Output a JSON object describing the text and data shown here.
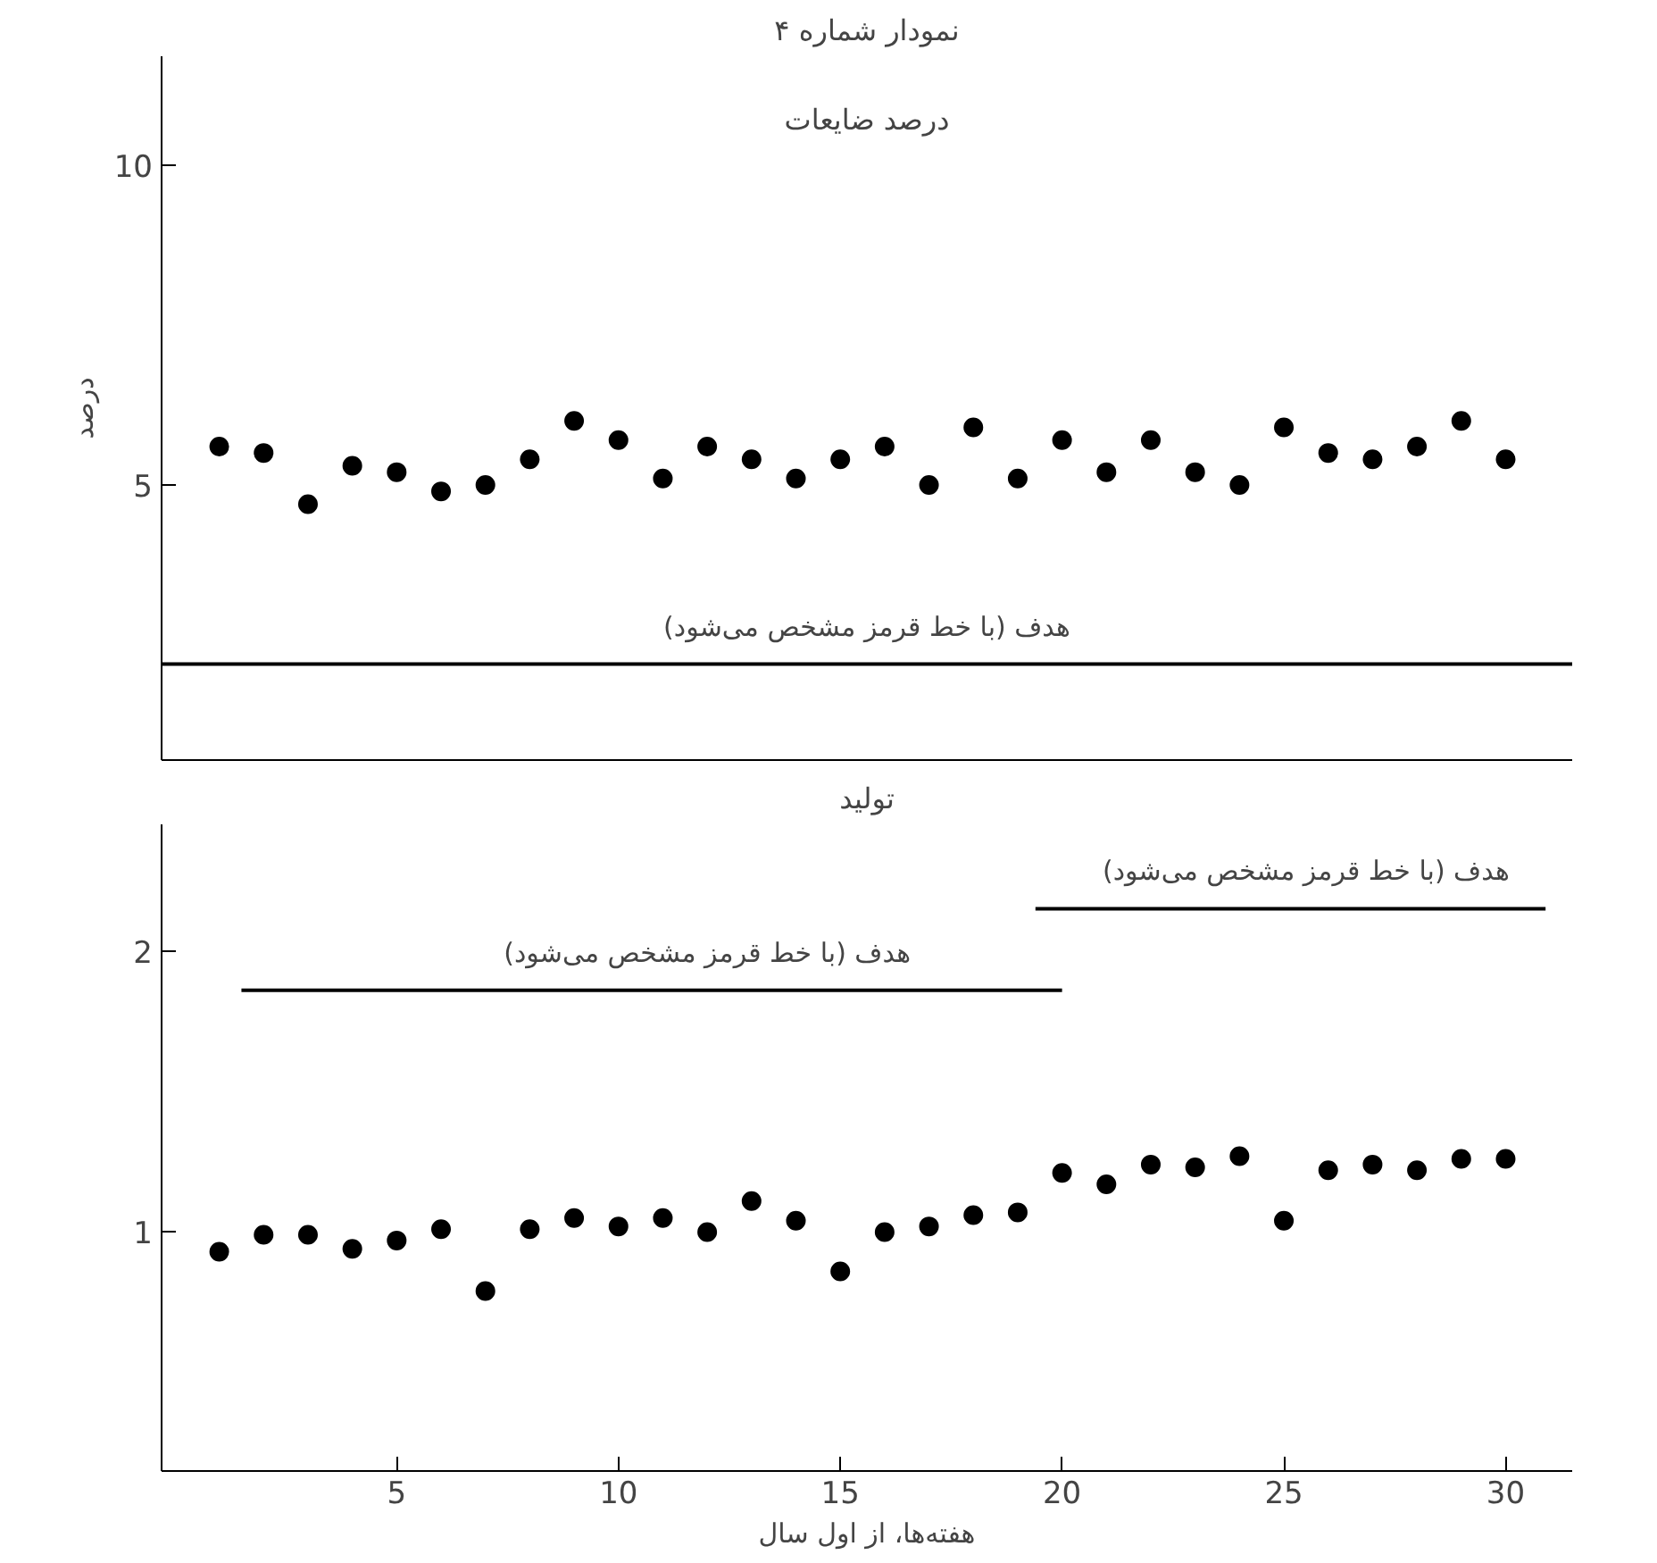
{
  "chart_data": [
    {
      "type": "scatter",
      "title": "نمودار شماره ۴",
      "subtitle": "درصد ضایعات",
      "ylabel": "درصد",
      "x": [
        1,
        2,
        3,
        4,
        5,
        6,
        7,
        8,
        9,
        10,
        11,
        12,
        13,
        14,
        15,
        16,
        17,
        18,
        19,
        20,
        21,
        22,
        23,
        24,
        25,
        26,
        27,
        28,
        29,
        30
      ],
      "series": [
        {
          "color": "#000000",
          "values": [
            5.6,
            5.5,
            4.7,
            5.3,
            5.2,
            4.9,
            5.0,
            5.4,
            6.0,
            5.7,
            5.1,
            5.6,
            5.4,
            5.1,
            5.4,
            5.6,
            5.0,
            5.9,
            5.1,
            5.7,
            5.2,
            5.7,
            5.2,
            5.0,
            5.9,
            5.5,
            5.4,
            5.6,
            6.0,
            5.4
          ]
        }
      ],
      "ref_lines": [
        {
          "axis": "y",
          "value": 2.2,
          "label": "هدف (با خط قرمز مشخص می‌شود)",
          "color": "#000000"
        }
      ],
      "xlim": [
        -0.3,
        31.5
      ],
      "ylim": [
        0.7,
        11.7
      ],
      "yticks": [
        5,
        10
      ],
      "tick_labels": "y",
      "marker": "circle",
      "grid": false
    },
    {
      "type": "scatter",
      "title": "تولید",
      "xlabel": "هفته‌ها، از اول سال",
      "x": [
        1,
        2,
        3,
        4,
        5,
        6,
        7,
        8,
        9,
        10,
        11,
        12,
        13,
        14,
        15,
        16,
        17,
        18,
        19,
        20,
        21,
        22,
        23,
        24,
        25,
        26,
        27,
        28,
        29,
        30
      ],
      "series": [
        {
          "color": "#000000",
          "marker": "circle",
          "values": [
            0.93,
            0.99,
            0.99,
            0.94,
            0.97,
            1.01,
            0.79,
            1.01,
            1.05,
            1.02,
            1.05,
            1.0,
            1.11,
            1.04,
            0.86,
            1.0,
            1.02,
            1.06,
            1.07,
            1.21,
            1.17,
            1.24,
            1.23,
            1.27,
            1.04,
            1.22,
            1.24,
            1.22,
            1.26,
            1.26
          ]
        },
        {
          "type": "line",
          "marker": "none",
          "color": "#000000",
          "x": [
            1.5,
            20
          ],
          "values": [
            1.86,
            1.86
          ]
        },
        {
          "type": "line",
          "marker": "none",
          "color": "#000000",
          "x": [
            19.4,
            30.9
          ],
          "values": [
            2.15,
            2.15
          ]
        }
      ],
      "annotations": [
        {
          "text": "هدف (با خط قرمز مشخص می‌شود)",
          "x": 12,
          "y": 1.86
        },
        {
          "text": "هدف (با خط قرمز مشخص می‌شود)",
          "x": 25.5,
          "y": 2.15
        }
      ],
      "xlim": [
        -0.3,
        31.5
      ],
      "ylim": [
        0.15,
        2.45
      ],
      "xticks": [
        5,
        10,
        15,
        20,
        25,
        30
      ],
      "yticks": [
        1,
        2
      ],
      "grid": false
    }
  ]
}
